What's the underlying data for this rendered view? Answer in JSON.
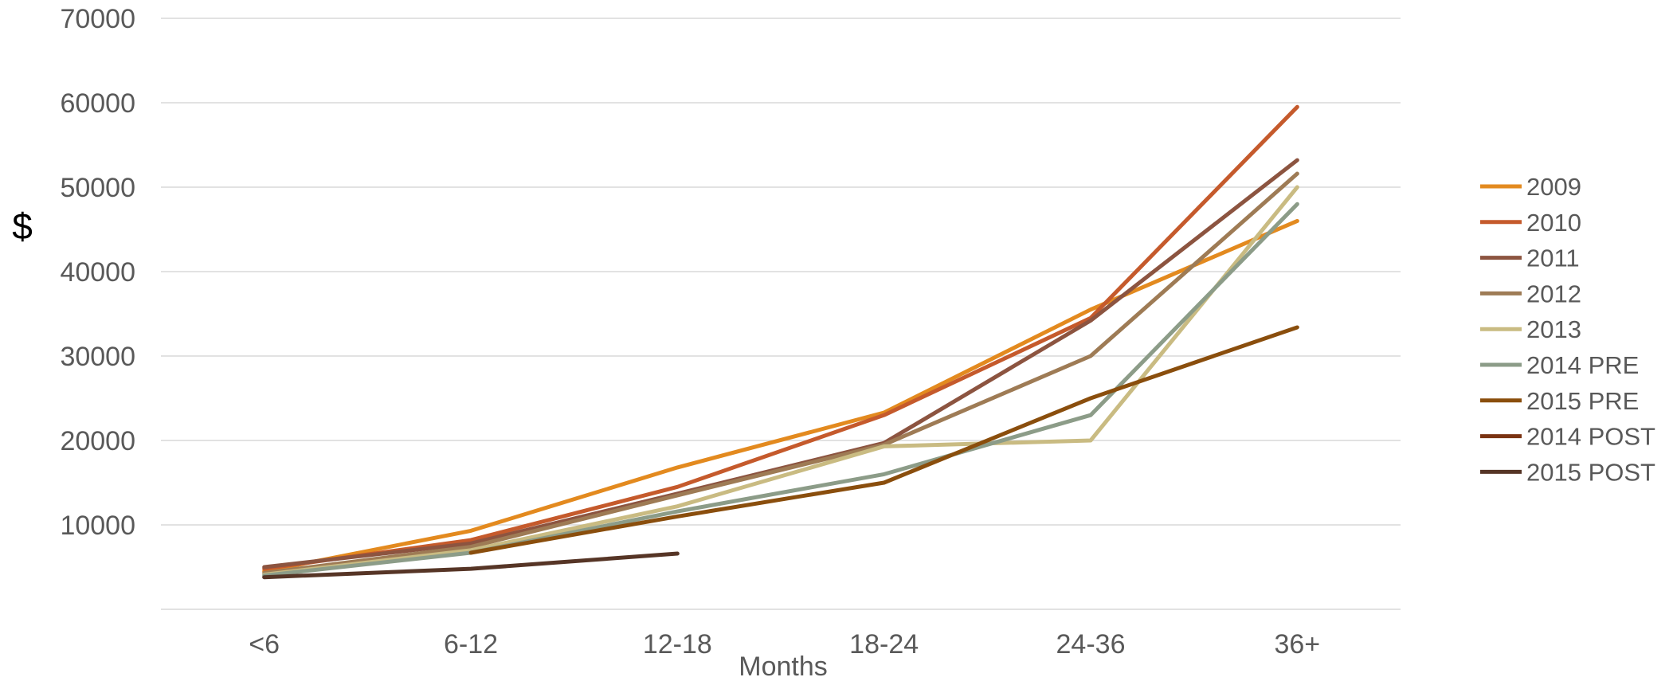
{
  "chart_data": {
    "type": "line",
    "title": "",
    "xlabel": "Months",
    "ylabel": "$",
    "categories": [
      "<6",
      "6-12",
      "12-18",
      "18-24",
      "24-36",
      "36+"
    ],
    "ylim": [
      0,
      70000
    ],
    "yticks": [
      10000,
      20000,
      30000,
      40000,
      50000,
      60000,
      70000
    ],
    "ytick_labels": [
      "10000",
      "20000",
      "30000",
      "40000",
      "50000",
      "60000",
      "70000"
    ],
    "grid": true,
    "legend_position": "right",
    "series": [
      {
        "name": "2009",
        "color": "#E38A1F",
        "values": [
          4500,
          9300,
          16800,
          23300,
          35500,
          46000
        ]
      },
      {
        "name": "2010",
        "color": "#C55A2C",
        "values": [
          4800,
          8200,
          14500,
          23000,
          34500,
          59500
        ]
      },
      {
        "name": "2011",
        "color": "#8C5440",
        "values": [
          5000,
          7800,
          13700,
          19700,
          34200,
          53200
        ]
      },
      {
        "name": "2012",
        "color": "#9E7B55",
        "values": [
          4300,
          7400,
          13500,
          19500,
          30000,
          51600
        ]
      },
      {
        "name": "2013",
        "color": "#C9BB82",
        "values": [
          4100,
          7000,
          12200,
          19300,
          20000,
          50000
        ]
      },
      {
        "name": "2014 PRE",
        "color": "#8C9C88",
        "values": [
          4000,
          6700,
          11600,
          16000,
          23000,
          48000
        ]
      },
      {
        "name": "2015 PRE",
        "color": "#8A4E0D",
        "values": [
          null,
          6700,
          11000,
          15000,
          25000,
          33400
        ]
      },
      {
        "name": "2014 POST",
        "color": "#7A3312",
        "values": [
          null,
          null,
          null,
          null,
          null,
          null
        ]
      },
      {
        "name": "2015 POST",
        "color": "#563526",
        "values": [
          3800,
          4800,
          6600,
          null,
          null,
          null
        ]
      }
    ]
  }
}
